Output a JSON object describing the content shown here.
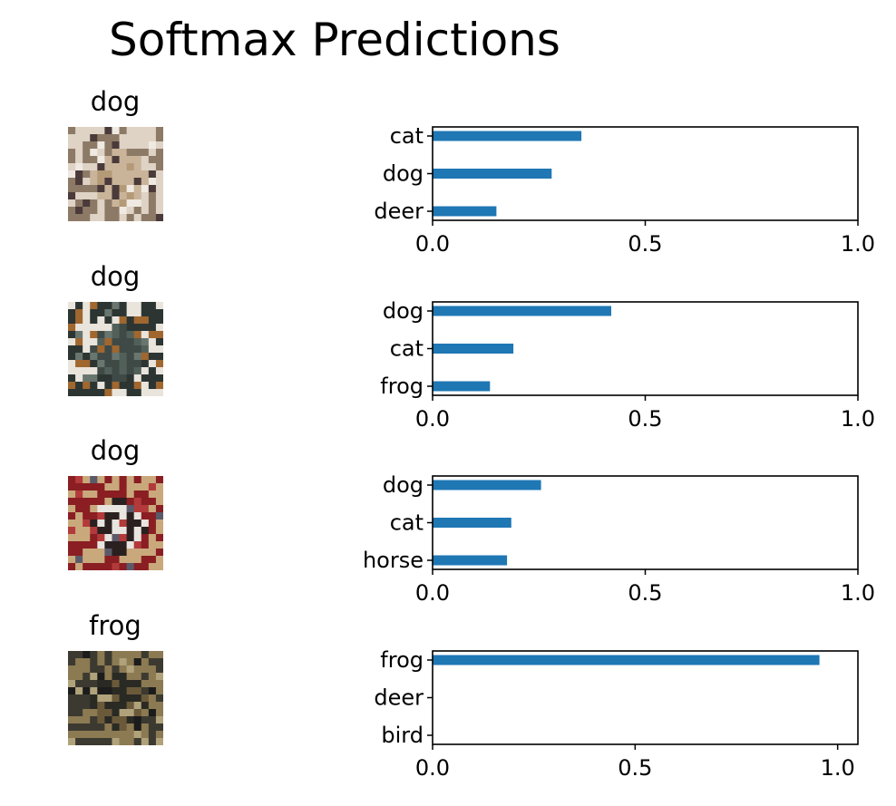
{
  "title": "Softmax Predictions",
  "colors": {
    "bar": "#1f77b4",
    "axis": "#000000",
    "background": "#ffffff"
  },
  "images": [
    {
      "label": "dog",
      "icon": "dog-photo-thumbnail",
      "palette": [
        "#c9b49a",
        "#b59a78",
        "#ded3c5",
        "#8d7a66",
        "#4b3a3a",
        "#efe9e1"
      ]
    },
    {
      "label": "dog",
      "icon": "dog-photo-thumbnail",
      "palette": [
        "#3f4a47",
        "#52605a",
        "#2c3532",
        "#e9e4dc",
        "#a0672f",
        "#697670"
      ]
    },
    {
      "label": "dog",
      "icon": "dog-photo-thumbnail",
      "palette": [
        "#2a2020",
        "#e8e4df",
        "#c9a97c",
        "#8a1e22",
        "#b33a3a",
        "#5b5a6a"
      ]
    },
    {
      "label": "frog",
      "icon": "frog-photo-thumbnail",
      "palette": [
        "#2a2a24",
        "#6b5a3a",
        "#8c7a52",
        "#3c3a30",
        "#b0a27a",
        "#1c1c1c"
      ]
    }
  ],
  "chart_data": [
    {
      "type": "bar",
      "orientation": "horizontal",
      "categories": [
        "cat",
        "dog",
        "deer"
      ],
      "values": [
        0.35,
        0.28,
        0.15
      ],
      "xlim": [
        0,
        1.0
      ],
      "xticks": [
        "0.0",
        "0.5",
        "1.0"
      ]
    },
    {
      "type": "bar",
      "orientation": "horizontal",
      "categories": [
        "dog",
        "cat",
        "frog"
      ],
      "values": [
        0.42,
        0.19,
        0.135
      ],
      "xlim": [
        0,
        1.0
      ],
      "xticks": [
        "0.0",
        "0.5",
        "1.0"
      ]
    },
    {
      "type": "bar",
      "orientation": "horizontal",
      "categories": [
        "dog",
        "cat",
        "horse"
      ],
      "values": [
        0.255,
        0.185,
        0.175
      ],
      "xlim": [
        0,
        1.0
      ],
      "xticks": [
        "0.0",
        "0.5",
        "1.0"
      ]
    },
    {
      "type": "bar",
      "orientation": "horizontal",
      "categories": [
        "frog",
        "deer",
        "bird"
      ],
      "values": [
        0.955,
        0.0,
        0.0
      ],
      "xlim": [
        0,
        1.05
      ],
      "xticks": [
        "0.0",
        "0.5",
        "1.0"
      ]
    }
  ]
}
